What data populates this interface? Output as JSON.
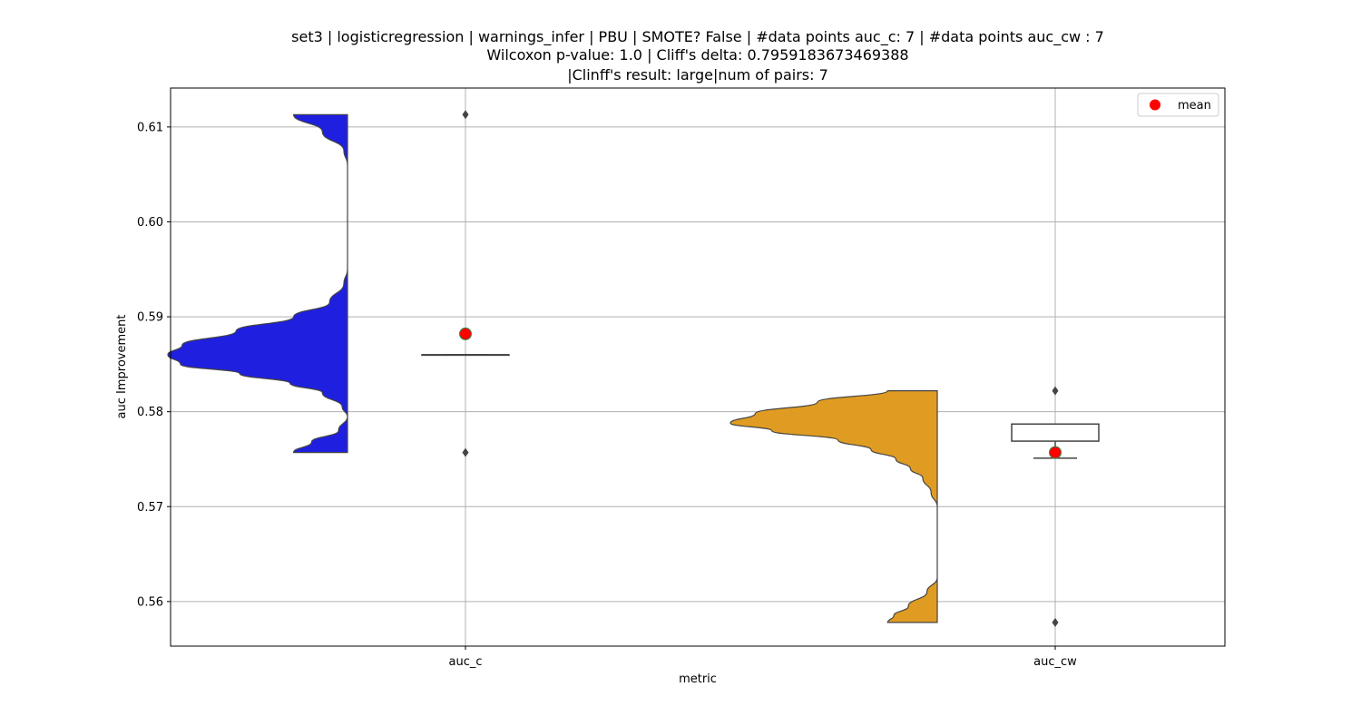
{
  "chart_data": {
    "type": "violin",
    "title_lines": [
      "set3 | logisticregression | warnings_infer | PBU | SMOTE? False | #data points auc_c: 7 | #data points auc_cw : 7",
      "Wilcoxon p-value: 1.0 | Cliff's delta: 0.7959183673469388",
      "|Clinff's result: large|num of pairs: 7"
    ],
    "xlabel": "metric",
    "ylabel": "auc Improvement",
    "categories": [
      "auc_c",
      "auc_cw"
    ],
    "ylim": [
      0.5553,
      0.6141
    ],
    "yticks": [
      0.56,
      0.57,
      0.58,
      0.59,
      0.6,
      0.61
    ],
    "ytick_labels": [
      "0.56",
      "0.57",
      "0.58",
      "0.59",
      "0.60",
      "0.61"
    ],
    "grid": true,
    "legend": {
      "placement": "top-right",
      "entries": [
        {
          "label": "mean",
          "color": "#ff0000"
        }
      ]
    },
    "series": [
      {
        "category": "auc_c",
        "color": "#1f1fe0",
        "violin_range": [
          0.5757,
          0.6113
        ],
        "density_profile": [
          [
            0.6113,
            0.3
          ],
          [
            0.6095,
            0.14
          ],
          [
            0.6075,
            0.02
          ],
          [
            0.606,
            0.0
          ],
          [
            0.595,
            0.0
          ],
          [
            0.5935,
            0.02
          ],
          [
            0.5915,
            0.1
          ],
          [
            0.59,
            0.3
          ],
          [
            0.5885,
            0.62
          ],
          [
            0.587,
            0.92
          ],
          [
            0.586,
            1.0
          ],
          [
            0.585,
            0.93
          ],
          [
            0.584,
            0.6
          ],
          [
            0.583,
            0.32
          ],
          [
            0.582,
            0.14
          ],
          [
            0.5805,
            0.03
          ],
          [
            0.5795,
            0.0
          ],
          [
            0.578,
            0.05
          ],
          [
            0.5768,
            0.2
          ],
          [
            0.5757,
            0.3
          ]
        ],
        "box": {
          "q1": 0.586,
          "median": 0.586,
          "q3": 0.586,
          "whisker_low": 0.586,
          "whisker_high": 0.586
        },
        "outliers": [
          0.6113,
          0.5757
        ],
        "mean": 0.5882
      },
      {
        "category": "auc_cw",
        "color": "#e09c22",
        "violin_range": [
          0.5578,
          0.5822
        ],
        "density_profile": [
          [
            0.5822,
            0.24
          ],
          [
            0.581,
            0.58
          ],
          [
            0.5798,
            0.88
          ],
          [
            0.5788,
            1.0
          ],
          [
            0.578,
            0.8
          ],
          [
            0.577,
            0.48
          ],
          [
            0.576,
            0.32
          ],
          [
            0.575,
            0.2
          ],
          [
            0.574,
            0.13
          ],
          [
            0.573,
            0.07
          ],
          [
            0.5715,
            0.03
          ],
          [
            0.57,
            0.0
          ],
          [
            0.5625,
            0.0
          ],
          [
            0.561,
            0.05
          ],
          [
            0.5595,
            0.14
          ],
          [
            0.5585,
            0.21
          ],
          [
            0.5578,
            0.24
          ]
        ],
        "box": {
          "q1": 0.5769,
          "median": 0.5787,
          "q3": 0.5787,
          "whisker_low": 0.5751,
          "whisker_high": 0.5787
        },
        "outliers": [
          0.5822,
          0.5578
        ],
        "mean": 0.5757
      }
    ]
  }
}
